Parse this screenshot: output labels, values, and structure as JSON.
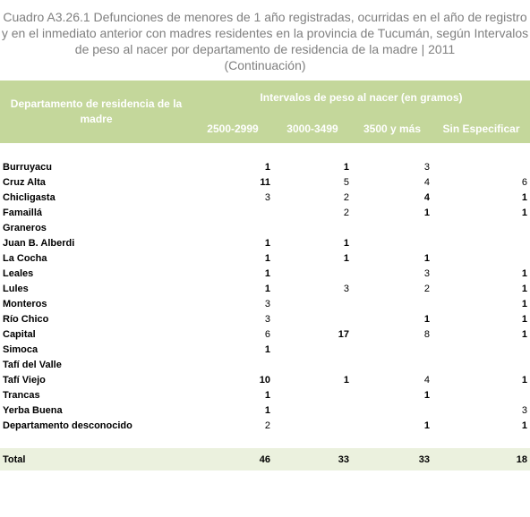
{
  "header": {
    "title": "Cuadro A3.26.1 Defunciones de menores de 1 año registradas, ocurridas en el año de registro y en el inmediato anterior con madres residentes en la provincia de Tucumán, según Intervalos de peso al nacer por departamento de residencia de la madre | 2011",
    "subtitle": "(Continuación)"
  },
  "table": {
    "row_header": "Departamento de residencia de la madre",
    "group_header": "Intervalos de peso al nacer (en gramos)",
    "columns": [
      "2500-2999",
      "3000-3499",
      "3500 y más",
      "Sin Especificar"
    ],
    "rows": [
      [
        "Burruyacu",
        1,
        1,
        3,
        null
      ],
      [
        "Cruz Alta",
        11,
        5,
        4,
        6
      ],
      [
        "Chicligasta",
        3,
        2,
        4,
        1
      ],
      [
        "Famaillá",
        null,
        2,
        1,
        1
      ],
      [
        "Graneros",
        null,
        null,
        null,
        null
      ],
      [
        "Juan B. Alberdi",
        1,
        1,
        null,
        null
      ],
      [
        "La Cocha",
        1,
        1,
        1,
        null
      ],
      [
        "Leales",
        1,
        null,
        3,
        1
      ],
      [
        "Lules",
        1,
        3,
        2,
        1
      ],
      [
        "Monteros",
        3,
        null,
        null,
        1
      ],
      [
        "Río Chico",
        3,
        null,
        1,
        1
      ],
      [
        "Capital",
        6,
        17,
        8,
        1
      ],
      [
        "Simoca",
        1,
        null,
        null,
        null
      ],
      [
        "Tafí del Valle",
        null,
        null,
        null,
        null
      ],
      [
        "Tafí Viejo",
        10,
        1,
        4,
        1
      ],
      [
        "Trancas",
        1,
        null,
        1,
        null
      ],
      [
        "Yerba Buena",
        1,
        null,
        null,
        3
      ],
      [
        "Departamento desconocido",
        2,
        null,
        1,
        1
      ]
    ],
    "total": [
      "Total",
      46,
      33,
      33,
      18
    ]
  }
}
